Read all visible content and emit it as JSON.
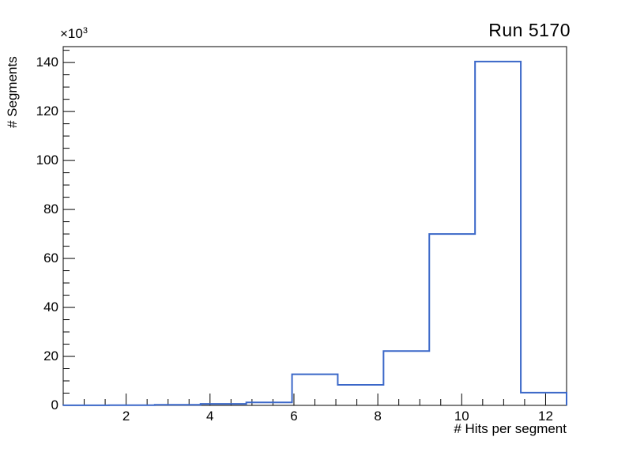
{
  "chart_data": {
    "type": "histogram",
    "title": "Run 5170",
    "xlabel": "# Hits per segment",
    "ylabel": "# Segments",
    "y_multiplier_base": "×10",
    "y_multiplier_exp": "3",
    "x_min": 0.5,
    "x_max": 12.5,
    "y_min": 0,
    "y_max": 146.5,
    "bin_edges": [
      0.5,
      1.591,
      2.682,
      3.773,
      4.864,
      5.955,
      7.045,
      8.136,
      9.227,
      10.318,
      11.409,
      12.5
    ],
    "values_thousands": [
      0.05,
      0.1,
      0.25,
      0.6,
      1.2,
      12.7,
      8.4,
      22.2,
      70.0,
      140.4,
      5.2
    ],
    "x_major_ticks": [
      2,
      4,
      6,
      8,
      10,
      12
    ],
    "x_minor_step": 0.5,
    "y_major_ticks": [
      0,
      20,
      40,
      60,
      80,
      100,
      120,
      140
    ],
    "y_minor_step": 5,
    "line_color": "#3a67c8",
    "axis_color": "#000000",
    "background_color": "#ffffff",
    "legend": "none",
    "grid": "off"
  }
}
